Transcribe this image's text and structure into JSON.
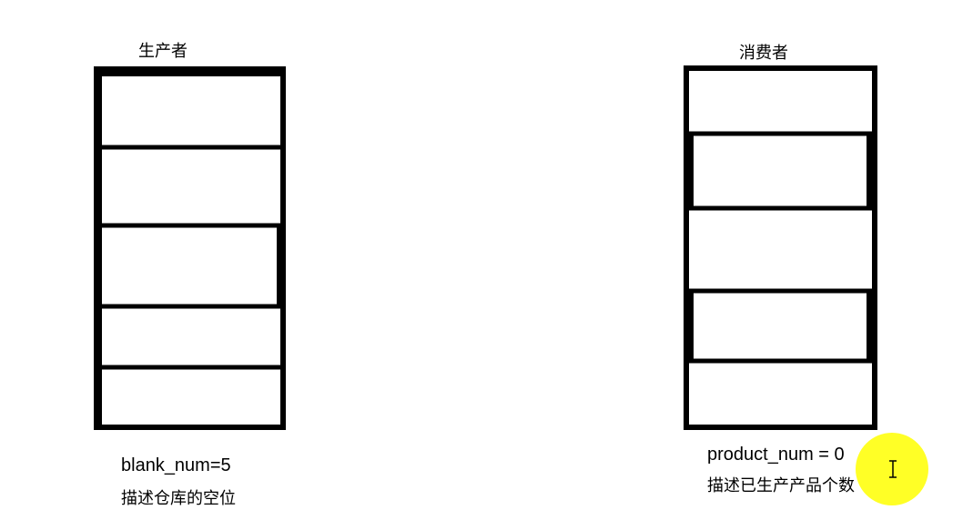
{
  "producer": {
    "title": "生产者",
    "slots": 5,
    "var_label": "blank_num=5",
    "desc": "描述仓库的空位"
  },
  "consumer": {
    "title": "消费者",
    "slots": 5,
    "var_label": "product_num = 0",
    "desc": "描述已生产产品个数"
  },
  "colors": {
    "stroke": "#000000",
    "highlight": "#ffff00"
  },
  "cursor": {
    "icon": "i-beam-cursor-icon"
  }
}
